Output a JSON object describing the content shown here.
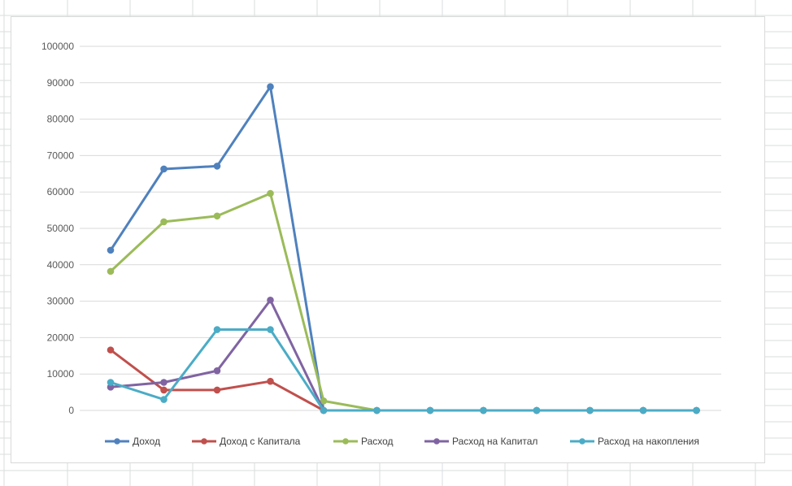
{
  "chart_data": {
    "type": "line",
    "title": "",
    "xlabel": "",
    "ylabel": "",
    "ylim": [
      0,
      100000
    ],
    "yticks": [
      0,
      10000,
      20000,
      30000,
      40000,
      50000,
      60000,
      70000,
      80000,
      90000,
      100000
    ],
    "ytick_labels": [
      "0",
      "10000",
      "20000",
      "30000",
      "40000",
      "50000",
      "60000",
      "70000",
      "80000",
      "90000",
      "100000"
    ],
    "grid": true,
    "legend_position": "bottom",
    "x": [
      1,
      2,
      3,
      4,
      5,
      6,
      7,
      8,
      9,
      10,
      11,
      12
    ],
    "series": [
      {
        "name": "Доход",
        "color": "#4f81bd",
        "values": [
          44000,
          66300,
          67100,
          88900,
          0,
          0,
          0,
          0,
          0,
          0,
          0,
          0
        ]
      },
      {
        "name": "Доход с Капитала",
        "color": "#c0504d",
        "values": [
          16600,
          5600,
          5600,
          8000,
          0,
          0,
          0,
          0,
          0,
          0,
          0,
          0
        ]
      },
      {
        "name": "Расход",
        "color": "#9bbb59",
        "values": [
          38200,
          51800,
          53400,
          59600,
          2600,
          0,
          0,
          0,
          0,
          0,
          0,
          0
        ]
      },
      {
        "name": "Расход на Капитал",
        "color": "#8064a2",
        "values": [
          6400,
          7700,
          10900,
          30300,
          0,
          0,
          0,
          0,
          0,
          0,
          0,
          0
        ]
      },
      {
        "name": "Расход на накопления",
        "color": "#4bacc6",
        "values": [
          7700,
          3000,
          22200,
          22200,
          0,
          0,
          0,
          0,
          0,
          0,
          0,
          0
        ]
      }
    ]
  }
}
